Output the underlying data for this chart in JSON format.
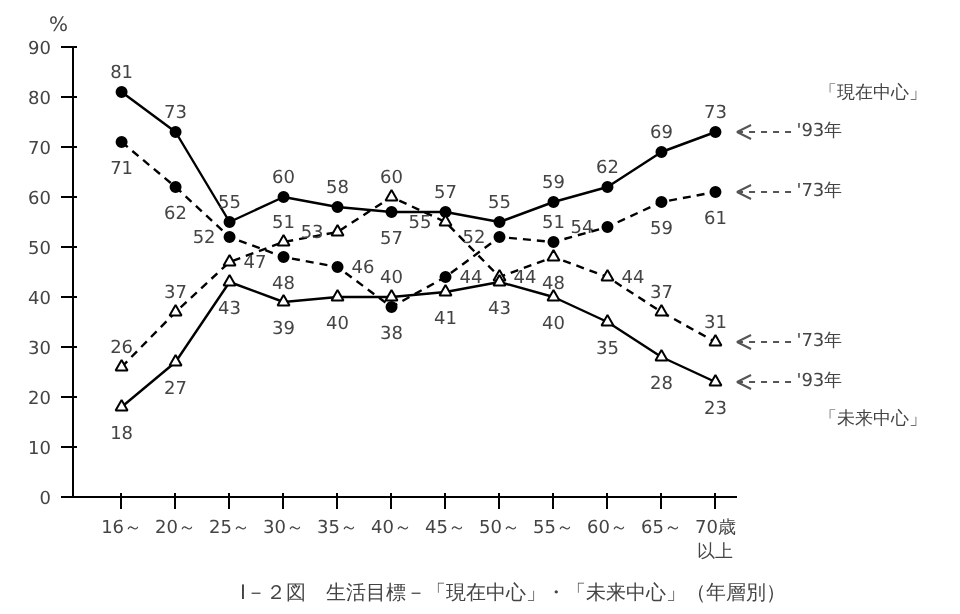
{
  "chart_data": {
    "type": "line",
    "title": "Ⅰ－２図　生活目標－「現在中心」・「未来中心」（年層別）",
    "ylabel": "%",
    "categories": [
      "16～",
      "20～",
      "25～",
      "30～",
      "35～",
      "40～",
      "45～",
      "50～",
      "55～",
      "60～",
      "65～",
      "70歳以上"
    ],
    "series": [
      {
        "name": "'93年",
        "color": "#000000",
        "marker": "circle",
        "line_style": "solid",
        "values": [
          81,
          73,
          55,
          60,
          58,
          57,
          57,
          55,
          59,
          62,
          69,
          73
        ]
      },
      {
        "name": "'73年",
        "color": "#000000",
        "marker": "circle",
        "line_style": "dashed",
        "values": [
          71,
          62,
          52,
          48,
          46,
          38,
          44,
          52,
          51,
          54,
          59,
          61
        ]
      },
      {
        "name": "'73年",
        "color": "#000000",
        "marker": "triangle",
        "line_style": "dashed",
        "values": [
          26,
          37,
          47,
          51,
          53,
          60,
          55,
          44,
          48,
          44,
          37,
          31
        ]
      },
      {
        "name": "'93年",
        "color": "#000000",
        "marker": "triangle",
        "line_style": "solid",
        "values": [
          18,
          27,
          43,
          39,
          40,
          40,
          41,
          43,
          40,
          35,
          28,
          23
        ]
      }
    ],
    "annotations": [
      "「現在中心」",
      "「未来中心」"
    ],
    "ylim": [
      0,
      90
    ],
    "yticks": [
      0,
      10,
      20,
      30,
      40,
      50,
      60,
      70,
      80,
      90
    ],
    "data_labels": true,
    "grid": false
  }
}
